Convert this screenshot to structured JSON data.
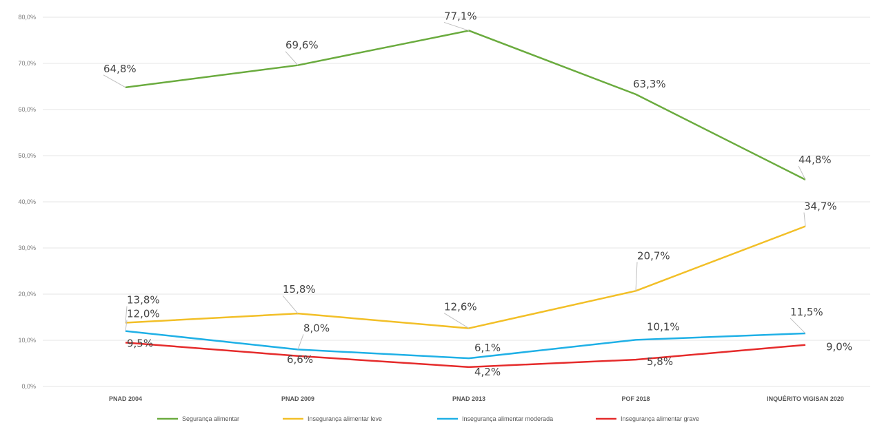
{
  "chart_data": {
    "type": "line",
    "categories": [
      "PNAD 2004",
      "PNAD 2009",
      "PNAD 2013",
      "POF 2018",
      "INQUÉRITO VIGISAN 2020"
    ],
    "y_ticks": [
      "0,0%",
      "10,0%",
      "20,0%",
      "30,0%",
      "40,0%",
      "50,0%",
      "60,0%",
      "70,0%",
      "80,0%"
    ],
    "ylim": [
      0,
      80
    ],
    "grid": true,
    "legend_position": "bottom",
    "series": [
      {
        "name": "Segurança alimentar",
        "color": "#6aab3e",
        "values": [
          64.8,
          69.6,
          77.1,
          63.3,
          44.8
        ],
        "labels": [
          "64,8%",
          "69,6%",
          "77,1%",
          "63,3%",
          "44,8%"
        ]
      },
      {
        "name": "Insegurança alimentar leve",
        "color": "#f2bf27",
        "values": [
          13.8,
          15.8,
          12.6,
          20.7,
          34.7
        ],
        "labels": [
          "13,8%",
          "15,8%",
          "12,6%",
          "20,7%",
          "34,7%"
        ]
      },
      {
        "name": "Insegurança alimentar moderada",
        "color": "#1fb0e6",
        "values": [
          12.0,
          8.0,
          6.1,
          10.1,
          11.5
        ],
        "labels": [
          "12,0%",
          "8,0%",
          "6,1%",
          "10,1%",
          "11,5%"
        ]
      },
      {
        "name": "Insegurança alimentar grave",
        "color": "#e52b2b",
        "values": [
          9.5,
          6.6,
          4.2,
          5.8,
          9.0
        ],
        "labels": [
          "9,5%",
          "6,6%",
          "4,2%",
          "5,8%",
          "9,0%"
        ]
      }
    ]
  }
}
